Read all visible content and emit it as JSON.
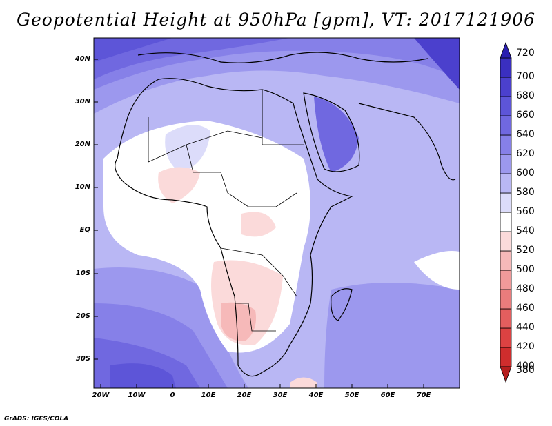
{
  "title": "Geopotential Height at 950hPa [gpm], VT: 2017121906",
  "credit": "GrADS: IGES/COLA",
  "lat_labels": [
    "40N",
    "30N",
    "20N",
    "10N",
    "EQ",
    "10S",
    "20S",
    "30S"
  ],
  "lon_labels": [
    "20W",
    "10W",
    "0",
    "10E",
    "20E",
    "30E",
    "40E",
    "50E",
    "60E",
    "70E"
  ],
  "colorbar": {
    "levels": [
      "720",
      "700",
      "680",
      "660",
      "640",
      "620",
      "600",
      "580",
      "560",
      "540",
      "520",
      "500",
      "480",
      "460",
      "440",
      "420",
      "400",
      "380"
    ],
    "colors": [
      "#2a1eb0",
      "#3a2fc0",
      "#4b40cd",
      "#5d55d8",
      "#7068e0",
      "#8680e8",
      "#9c98ee",
      "#b9b7f4",
      "#dcdcfa",
      "#ffffff",
      "#fbdada",
      "#f6b9b9",
      "#f19a9a",
      "#ea7c7c",
      "#e35e5e",
      "#dc4242",
      "#cf2d2d",
      "#b51e1e"
    ]
  }
}
